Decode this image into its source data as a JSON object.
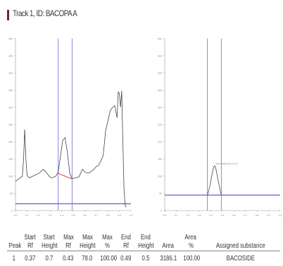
{
  "title": "Track 1, ID: BACOPA  A",
  "colors": {
    "accent": "#7a1e3a",
    "trace": "#444444",
    "marker": "#6a6ad8",
    "baseline": "#3333cc",
    "axis": "#999999"
  },
  "chart_data": [
    {
      "type": "line",
      "panel": "densitogram",
      "title": "",
      "xlim": [
        0,
        1
      ],
      "ylim": [
        0,
        500
      ],
      "x_ticks": [
        "0.0",
        "0.1",
        "0.2",
        "0.3",
        "0.4",
        "0.5",
        "0.6",
        "0.7",
        "0.8",
        "0.9",
        "1.0"
      ],
      "y_ticks": [
        "0",
        "50",
        "100",
        "150",
        "200",
        "250",
        "300",
        "350",
        "400",
        "450",
        "500"
      ],
      "series": [
        {
          "x": [
            0.0,
            0.02,
            0.04,
            0.06,
            0.07,
            0.08,
            0.09,
            0.1,
            0.12,
            0.15,
            0.18,
            0.21,
            0.24,
            0.27,
            0.29,
            0.31,
            0.33,
            0.35,
            0.37,
            0.39,
            0.41,
            0.43,
            0.45,
            0.47,
            0.49,
            0.52,
            0.55,
            0.58,
            0.61,
            0.64,
            0.66,
            0.68,
            0.7,
            0.72,
            0.74,
            0.76,
            0.78,
            0.8,
            0.82,
            0.84,
            0.86,
            0.88,
            0.89,
            0.9,
            0.91,
            0.92,
            0.93,
            0.94,
            0.95,
            0.96
          ],
          "y": [
            85,
            90,
            95,
            100,
            150,
            236,
            150,
            102,
            95,
            100,
            105,
            110,
            120,
            110,
            100,
            95,
            97,
            100,
            112,
            160,
            205,
            212,
            168,
            108,
            93,
            95,
            98,
            120,
            110,
            110,
            115,
            120,
            128,
            132,
            145,
            160,
            230,
            260,
            290,
            300,
            305,
            270,
            345,
            340,
            300,
            348,
            200,
            60,
            15,
            10
          ]
        }
      ],
      "markers": {
        "start_rf": 0.37,
        "end_rf": 0.49,
        "baseline_y": 20,
        "peak_baseline": [
          [
            0.37,
            108
          ],
          [
            0.49,
            92
          ]
        ]
      }
    },
    {
      "type": "line",
      "panel": "reference",
      "title": "",
      "xlim": [
        0,
        1
      ],
      "ylim": [
        0,
        500
      ],
      "x_ticks": [
        "0.0",
        "0.1",
        "0.2",
        "0.3",
        "0.4",
        "0.5",
        "0.6",
        "0.7",
        "0.8",
        "0.9",
        "1.0"
      ],
      "y_ticks": [
        "0",
        "50",
        "100",
        "150",
        "200",
        "250",
        "300",
        "350",
        "400",
        "450",
        "500"
      ],
      "annotation": "BACOSIDE @ 0.0 nm",
      "series": [
        {
          "x": [
            0.37,
            0.39,
            0.41,
            0.42,
            0.43,
            0.44,
            0.45,
            0.47,
            0.49
          ],
          "y": [
            45,
            70,
            105,
            122,
            130,
            126,
            110,
            75,
            45
          ]
        }
      ],
      "markers": {
        "start_rf": 0.37,
        "end_rf": 0.49,
        "baseline_y": 45
      }
    }
  ],
  "table": {
    "headers": [
      [
        "Peak"
      ],
      [
        "Start",
        "Rf"
      ],
      [
        "Start",
        "Height"
      ],
      [
        "Max",
        "Rf"
      ],
      [
        "Max",
        "Height"
      ],
      [
        "Max",
        "%"
      ],
      [
        "End",
        "Rf"
      ],
      [
        "End",
        "Height"
      ],
      [
        "Area"
      ],
      [
        "Area",
        "%"
      ],
      [
        "Assigned substance"
      ]
    ],
    "rows": [
      [
        "1",
        "0.37",
        "0.7",
        "0.43",
        "78.0",
        "100.00",
        "0.49",
        "0.5",
        "3186.1",
        "100.00",
        "BACOSIDE"
      ]
    ]
  }
}
